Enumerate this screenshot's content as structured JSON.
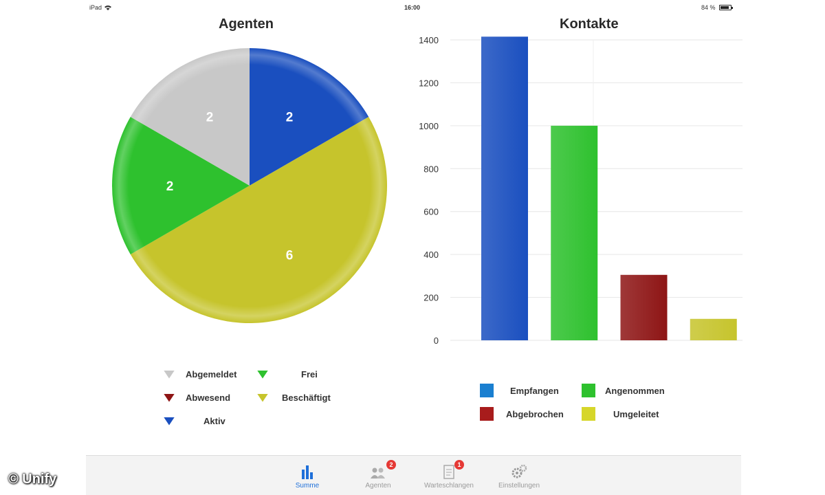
{
  "status_bar": {
    "device": "iPad",
    "time": "16:00",
    "battery": "84 %"
  },
  "colors": {
    "grey": "#c8c8c8",
    "blue": "#1a4fbf",
    "green": "#2ec12e",
    "yellow": "#c6c42c",
    "darkred": "#8e1515",
    "accent": "#1e6fd9"
  },
  "chart_data": [
    {
      "type": "pie",
      "title": "Agenten",
      "slices": [
        {
          "label": "Aktiv",
          "value": 2,
          "color": "#1a4fbf"
        },
        {
          "label": "Beschäftigt",
          "value": 6,
          "color": "#c6c42c"
        },
        {
          "label": "Frei",
          "value": 2,
          "color": "#2ec12e"
        },
        {
          "label": "Abgemeldet",
          "value": 2,
          "color": "#c8c8c8"
        }
      ],
      "legend": [
        {
          "label": "Abgemeldet",
          "color": "#c8c8c8"
        },
        {
          "label": "Frei",
          "color": "#2ec12e"
        },
        {
          "label": "Abwesend",
          "color": "#8e1515"
        },
        {
          "label": "Beschäftigt",
          "color": "#c6c42c"
        },
        {
          "label": "Aktiv",
          "color": "#1a4fbf"
        }
      ]
    },
    {
      "type": "bar",
      "title": "Kontakte",
      "categories": [
        "Empfangen",
        "Angenommen",
        "Abgebrochen",
        "Umgeleitet"
      ],
      "values": [
        1415,
        1000,
        305,
        100
      ],
      "colors": [
        "#1a4fbf",
        "#2ec12e",
        "#8e1515",
        "#c6c42c"
      ],
      "legend_colors": [
        "#1a7fd0",
        "#2ec12e",
        "#a81c1c",
        "#d6d62a"
      ],
      "ylim": [
        0,
        1400
      ],
      "yticks": [
        "0",
        "200",
        "400",
        "600",
        "800",
        "1000",
        "1200",
        "1400"
      ],
      "grid": true,
      "legend_position": "bottom"
    }
  ],
  "tabs": [
    {
      "label": "Summe",
      "active": true,
      "badge": ""
    },
    {
      "label": "Agenten",
      "active": false,
      "badge": "2"
    },
    {
      "label": "Warteschlangen",
      "active": false,
      "badge": "1"
    },
    {
      "label": "Einstellungen",
      "active": false,
      "badge": ""
    }
  ],
  "watermark": "© Unify"
}
